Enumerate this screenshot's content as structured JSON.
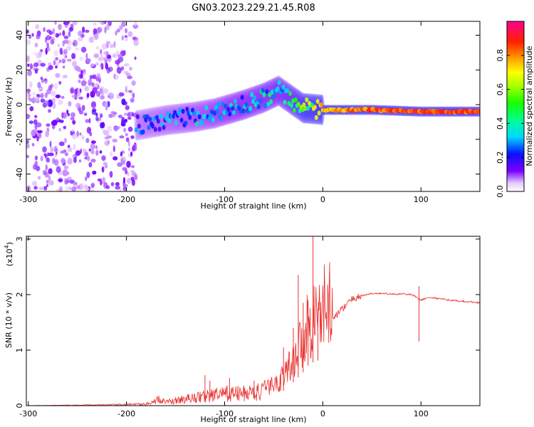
{
  "title": "GN03.2023.229.21.45.R08",
  "chart_data": [
    {
      "type": "heatmap",
      "name": "spectrogram",
      "xlabel": "Height of straight line (km)",
      "ylabel": "Frequency (Hz)",
      "xlim": [
        -302,
        160
      ],
      "ylim": [
        -50,
        48
      ],
      "xticks": [
        -300,
        -200,
        -100,
        0,
        100
      ],
      "yticks": [
        -40,
        -20,
        0,
        20,
        40
      ],
      "colorbar": {
        "label": "Normalized spectral amplitude",
        "range": [
          0,
          1
        ],
        "ticks": [
          "0.0",
          "0.2",
          "0.4",
          "0.6",
          "0.8"
        ],
        "tick_values": [
          0.0,
          0.2,
          0.4,
          0.6,
          0.8
        ]
      },
      "ridge": {
        "x": [
          -190,
          -160,
          -130,
          -110,
          -80,
          -60,
          -45,
          -35,
          -20,
          0,
          50,
          100,
          160
        ],
        "freq": [
          -12,
          -9,
          -7,
          -5,
          0,
          4,
          8,
          4,
          -2,
          -3,
          -3,
          -4,
          -4
        ],
        "amplitude": [
          0.25,
          0.28,
          0.3,
          0.32,
          0.35,
          0.38,
          0.4,
          0.42,
          0.55,
          0.8,
          0.88,
          0.9,
          0.9
        ]
      },
      "noise_region": [
        -302,
        -190
      ]
    },
    {
      "type": "line",
      "name": "snr",
      "xlabel": "Height of straight line (km)",
      "ylabel": "SNR (10 * v/v)",
      "yscale_label": "(x10",
      "yscale_exp": "4",
      "ylabel_suffix": ")",
      "xlim": [
        -302,
        160
      ],
      "ylim": [
        0,
        3.05
      ],
      "xticks": [
        -300,
        -200,
        -100,
        0,
        100
      ],
      "yticks": [
        0,
        1,
        2,
        3
      ],
      "color": "#e8302e",
      "x": [
        -302,
        -250,
        -200,
        -175,
        -167,
        -160,
        -140,
        -120,
        -100,
        -80,
        -60,
        -45,
        -35,
        -25,
        -20,
        -15,
        -10,
        -5,
        0,
        10,
        20,
        30,
        40,
        50,
        60,
        70,
        80,
        90,
        95,
        100,
        105,
        110,
        120,
        130,
        140,
        150,
        160
      ],
      "y": [
        0.0,
        0.01,
        0.02,
        0.04,
        0.12,
        0.06,
        0.12,
        0.17,
        0.21,
        0.22,
        0.25,
        0.35,
        0.55,
        0.85,
        1.0,
        1.2,
        1.3,
        1.35,
        1.42,
        1.55,
        1.75,
        1.92,
        1.98,
        2.02,
        2.02,
        2.01,
        2.01,
        2.0,
        1.96,
        1.9,
        1.93,
        1.95,
        1.92,
        1.9,
        1.88,
        1.87,
        1.85
      ],
      "peaks": [
        {
          "x": -120,
          "y": 0.55
        },
        {
          "x": -115,
          "y": 0.45
        },
        {
          "x": -95,
          "y": 0.5
        },
        {
          "x": -70,
          "y": 0.45
        },
        {
          "x": -40,
          "y": 1.05
        },
        {
          "x": -30,
          "y": 1.4
        },
        {
          "x": -25,
          "y": 2.35
        },
        {
          "x": -20,
          "y": 1.85
        },
        {
          "x": -15,
          "y": 1.9
        },
        {
          "x": -10,
          "y": 3.05
        },
        {
          "x": -5,
          "y": 1.75
        },
        {
          "x": 98,
          "y": 2.15
        }
      ]
    }
  ]
}
